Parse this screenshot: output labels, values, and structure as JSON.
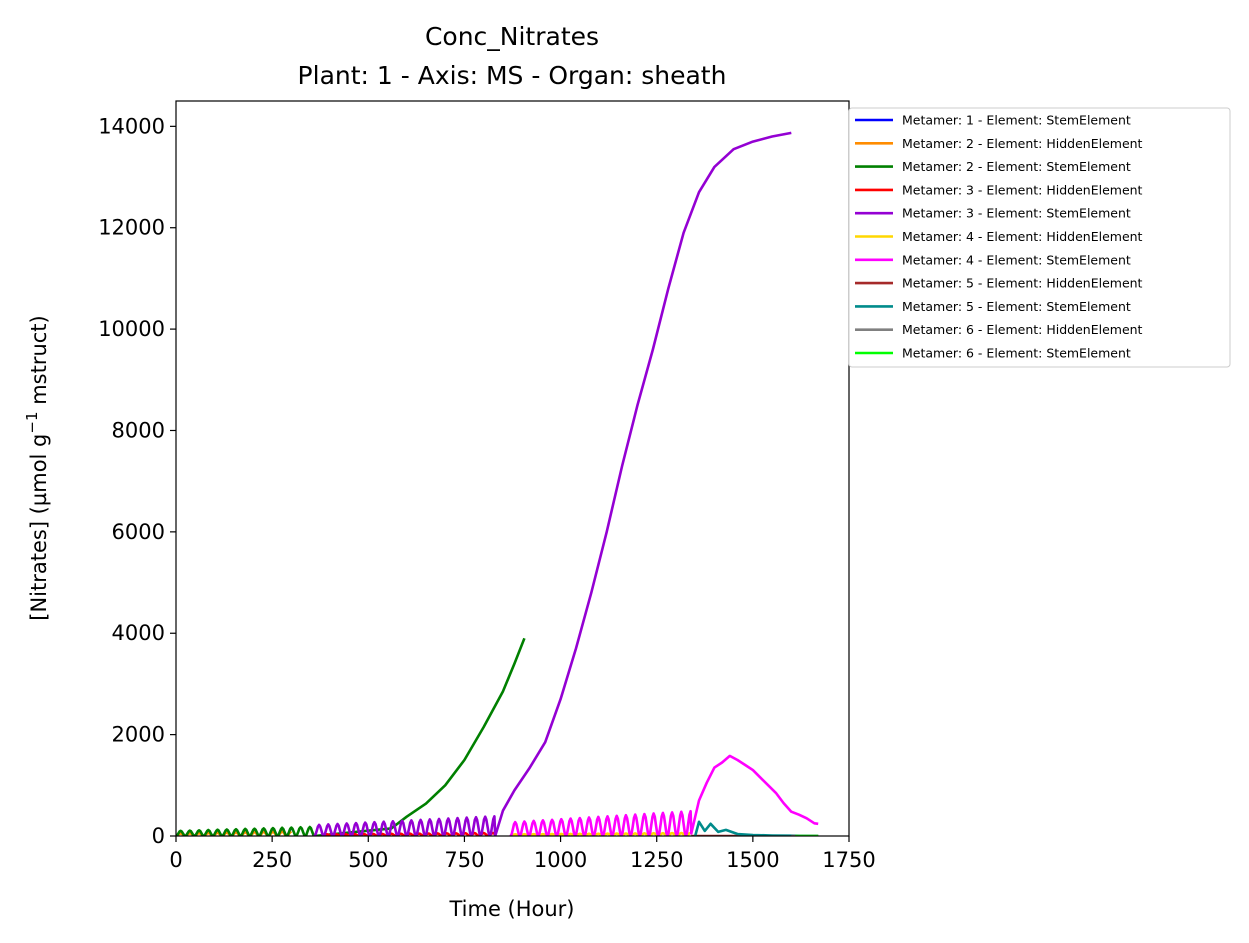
{
  "chart_data": {
    "type": "line",
    "title": "Conc_Nitrates",
    "subtitle": "Plant: 1 - Axis: MS - Organ: sheath",
    "xlabel": "Time (Hour)",
    "ylabel_main": "[Nitrates] (µmol g",
    "ylabel_sup": "−1",
    "ylabel_tail": " mstruct)",
    "xlim": [
      0,
      1750
    ],
    "ylim": [
      0,
      14500
    ],
    "x_ticks": [
      0,
      250,
      500,
      750,
      1000,
      1250,
      1500,
      1750
    ],
    "y_ticks": [
      0,
      2000,
      4000,
      6000,
      8000,
      10000,
      12000,
      14000
    ],
    "legend_position": "outside-upper-right",
    "series": [
      {
        "name": "Metamer: 1 - Element: StemElement",
        "color": "#0000ff",
        "osc": {
          "start": 0,
          "end": 300,
          "base": 0,
          "amp": 150
        },
        "points": []
      },
      {
        "name": "Metamer: 2 - Element: HiddenElement",
        "color": "#ff8c00",
        "osc": {
          "start": 0,
          "end": 300,
          "base": 0,
          "amp": 90
        },
        "points": []
      },
      {
        "name": "Metamer: 2 - Element: StemElement",
        "color": "#008000",
        "osc": {
          "start": 0,
          "end": 360,
          "base": 0,
          "amp": 180
        },
        "points": [
          [
            560,
            150
          ],
          [
            600,
            380
          ],
          [
            650,
            640
          ],
          [
            700,
            1000
          ],
          [
            750,
            1500
          ],
          [
            800,
            2150
          ],
          [
            850,
            2850
          ],
          [
            880,
            3400
          ],
          [
            906,
            3900
          ]
        ]
      },
      {
        "name": "Metamer: 3 - Element: HiddenElement",
        "color": "#ff0000",
        "osc": {
          "start": 380,
          "end": 830,
          "base": 0,
          "amp": 60
        },
        "points": []
      },
      {
        "name": "Metamer: 3 - Element: StemElement",
        "color": "#9400d3",
        "osc": {
          "start": 360,
          "end": 830,
          "base": 0,
          "amp": 390
        },
        "points": [
          [
            830,
            0
          ],
          [
            850,
            500
          ],
          [
            880,
            900
          ],
          [
            920,
            1350
          ],
          [
            960,
            1850
          ],
          [
            1000,
            2700
          ],
          [
            1040,
            3700
          ],
          [
            1080,
            4800
          ],
          [
            1120,
            6000
          ],
          [
            1160,
            7300
          ],
          [
            1200,
            8500
          ],
          [
            1240,
            9600
          ],
          [
            1280,
            10800
          ],
          [
            1320,
            11900
          ],
          [
            1360,
            12700
          ],
          [
            1400,
            13200
          ],
          [
            1450,
            13550
          ],
          [
            1500,
            13700
          ],
          [
            1550,
            13800
          ],
          [
            1600,
            13870
          ]
        ]
      },
      {
        "name": "Metamer: 4 - Element: HiddenElement",
        "color": "#ffd700",
        "osc": {
          "start": 870,
          "end": 1340,
          "base": 0,
          "amp": 60
        },
        "points": []
      },
      {
        "name": "Metamer: 4 - Element: StemElement",
        "color": "#ff00ff",
        "osc": {
          "start": 870,
          "end": 1340,
          "base": 0,
          "amp": 490
        },
        "points": [
          [
            1340,
            50
          ],
          [
            1360,
            700
          ],
          [
            1380,
            1050
          ],
          [
            1400,
            1350
          ],
          [
            1420,
            1450
          ],
          [
            1440,
            1580
          ],
          [
            1460,
            1500
          ],
          [
            1480,
            1400
          ],
          [
            1500,
            1300
          ],
          [
            1520,
            1150
          ],
          [
            1540,
            1000
          ],
          [
            1560,
            850
          ],
          [
            1580,
            650
          ],
          [
            1600,
            480
          ],
          [
            1620,
            420
          ],
          [
            1640,
            350
          ],
          [
            1660,
            250
          ],
          [
            1670,
            240
          ]
        ]
      },
      {
        "name": "Metamer: 5 - Element: HiddenElement",
        "color": "#a52a2a",
        "osc": null,
        "points": [
          [
            1340,
            0
          ],
          [
            1670,
            0
          ]
        ]
      },
      {
        "name": "Metamer: 5 - Element: StemElement",
        "color": "#008b8b",
        "osc": null,
        "points": [
          [
            1350,
            0
          ],
          [
            1360,
            280
          ],
          [
            1375,
            100
          ],
          [
            1390,
            240
          ],
          [
            1410,
            80
          ],
          [
            1430,
            120
          ],
          [
            1460,
            40
          ],
          [
            1500,
            20
          ],
          [
            1550,
            10
          ],
          [
            1600,
            5
          ],
          [
            1670,
            0
          ]
        ]
      },
      {
        "name": "Metamer: 6 - Element: HiddenElement",
        "color": "#808080",
        "osc": null,
        "points": [
          [
            1600,
            0
          ],
          [
            1670,
            0
          ]
        ]
      },
      {
        "name": "Metamer: 6 - Element: StemElement",
        "color": "#00ff00",
        "osc": null,
        "points": [
          [
            1610,
            0
          ],
          [
            1670,
            0
          ]
        ]
      }
    ]
  }
}
